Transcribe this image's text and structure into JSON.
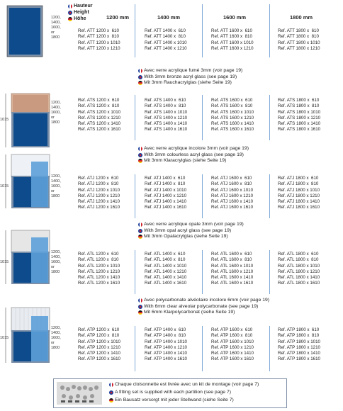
{
  "header": {
    "flags": [
      {
        "lang": "fr",
        "label": "Hauteur"
      },
      {
        "lang": "uk",
        "label": "Height"
      },
      {
        "lang": "de",
        "label": "Höhe"
      }
    ],
    "columns": [
      "1200 mm",
      "1400 mm",
      "1600 mm",
      "1800 mm"
    ]
  },
  "sections": [
    {
      "dims_height": "",
      "dims_list": "1200,\n1400,\n1600,\nor\n1800",
      "captions": [],
      "cols": [
        "Ref. ATT 1200 x  610\nRef. ATT 1200 x  810\nRef. ATT 1200 x 1010\nRef. ATT 1200 x 1210",
        "Ref. ATT 1400 x  610\nRef. ATT 1400 x  810\nRef. ATT 1400 x 1010\nRef. ATT 1400 x 1210",
        "Ref. ATT 1600 x  610\nRef. ATT 1600 x  810\nRef. ATT 1600 x 1010\nRef. ATT 1600 x 1210",
        "Ref. ATT 1800 x  610\nRef. ATT 1800 x  810\nRef. ATT 1800 x 1010\nRef. ATT 1800 x 1210"
      ]
    },
    {
      "dims_height": "1015",
      "dims_list": "1200,\n1400,\n1600,\nor\n1800",
      "captions": [
        {
          "lang": "fr",
          "text": "Avec verre acrylique fumé 3mm (voir page 19)"
        },
        {
          "lang": "uk",
          "text": "With 3mm bronze acryl glass (see page 19)"
        },
        {
          "lang": "de",
          "text": "Mit 3mm Rauchacrylglas (siehe Seite 19)"
        }
      ],
      "cols": [
        "Ref. ATS 1200 x  610\nRef. ATS 1200 x  810\nRef. ATS 1200 x 1010\nRef. ATS 1200 x 1210\nRef. ATS 1200 x 1410\nRef. ATS 1200 x 1610",
        "Ref. ATS 1400 x  610\nRef. ATS 1400 x  810\nRef. ATS 1400 x 1010\nRef. ATS 1400 x 1210\nRef. ATS 1400 x 1410\nRef. ATS 1400 x 1610",
        "Ref. ATS 1600 x  610\nRef. ATS 1600 x  810\nRef. ATS 1600 x 1010\nRef. ATS 1600 x 1210\nRef. ATS 1600 x 1410\nRef. ATS 1600 x 1610",
        "Ref. ATS 1800 x  610\nRef. ATS 1800 x  810\nRef. ATS 1800 x 1010\nRef. ATS 1800 x 1210\nRef. ATS 1800 x 1410\nRef. ATS 1800 x 1610"
      ]
    },
    {
      "dims_height": "1015",
      "dims_list": "1200,\n1400,\n1600,\nor\n1800",
      "captions": [
        {
          "lang": "fr",
          "text": "Avec verre acrylique incolore 3mm (voir page 19)"
        },
        {
          "lang": "uk",
          "text": "With 3mm colourless acryl glass (see page 19)"
        },
        {
          "lang": "de",
          "text": "Mit 3mm Klaracrylglas (siehe Seite 19)"
        }
      ],
      "cols": [
        "Ref. ATJ 1200 x  610\nRef. ATJ 1200 x  810\nRef. ATJ 1200 x 1010\nRef. ATJ 1200 x 1210\nRef. ATJ 1200 x 1410\nRef. ATJ 1200 x 1610",
        "Ref. ATJ 1400 x  610\nRef. ATJ 1400 x  810\nRef. ATJ 1400 x 1010\nRef. ATJ 1400 x 1210\nRef. ATJ 1400 x 1410\nRef. ATJ 1400 x 1610",
        "Ref. ATJ 1600 x  610\nRef. ATJ 1600 x  810\nRef. ATJ 1600 x 1010\nRef. ATJ 1600 x 1210\nRef. ATJ 1600 x 1410\nRef. ATJ 1600 x 1610",
        "Ref. ATJ 1800 x  610\nRef. ATJ 1800 x  810\nRef. ATJ 1800 x 1010\nRef. ATJ 1800 x 1210\nRef. ATJ 1800 x 1410\nRef. ATJ 1800 x 1610"
      ]
    },
    {
      "dims_height": "1015",
      "dims_list": "1200,\n1400,\n1600,\nor\n1800",
      "captions": [
        {
          "lang": "fr",
          "text": "Avec verre acrylique opale 3mm (voir page 19)"
        },
        {
          "lang": "uk",
          "text": "With 3mm opal acryl glass (see page 19)"
        },
        {
          "lang": "de",
          "text": "Mit 3mm Opalacrylglas (siehe Seite 19)"
        }
      ],
      "cols": [
        "Ref. ATL 1200 x  610\nRef. ATL 1200 x  810\nRef. ATL 1200 x 1010\nRef. ATL 1200 x 1210\nRef. ATL 1200 x 1410\nRef. ATL 1200 x 1610",
        "Ref. ATL 1400 x  610\nRef. ATL 1400 x  810\nRef. ATL 1400 x 1010\nRef. ATL 1400 x 1210\nRef. ATL 1400 x 1410\nRef. ATL 1400 x 1610",
        "Ref. ATL 1600 x  610\nRef. ATL 1600 x  810\nRef. ATL 1600 x 1010\nRef. ATL 1600 x 1210\nRef. ATL 1600 x 1410\nRef. ATL 1600 x 1610",
        "Ref. ATL 1800 x  610\nRef. ATL 1800 x  810\nRef. ATL 1800 x 1010\nRef. ATL 1800 x 1210\nRef. ATL 1800 x 1410\nRef. ATL 1800 x 1610"
      ]
    },
    {
      "dims_height": "1015",
      "dims_list": "1200,\n1400,\n1600,\nor\n1800",
      "captions": [
        {
          "lang": "fr",
          "text": "Avec polycarbonate alvéolaire incolore 6mm (voir page 19)"
        },
        {
          "lang": "uk",
          "text": "With 6mm clear alveolar polycarbonate (see page 19)"
        },
        {
          "lang": "de",
          "text": "Mit 6mm Klarpolycarbonat (siehe Seite 19)"
        }
      ],
      "cols": [
        "Ref. ATP 1200 x  610\nRef. ATP 1200 x  810\nRef. ATP 1200 x 1010\nRef. ATP 1200 x 1210\nRef. ATP 1200 x 1410\nRef. ATP 1200 x 1610",
        "Ref. ATP 1400 x  610\nRef. ATP 1400 x  810\nRef. ATP 1400 x 1010\nRef. ATP 1400 x 1210\nRef. ATP 1400 x 1410\nRef. ATP 1400 x 1610",
        "Ref. ATP 1600 x  610\nRef. ATP 1600 x  810\nRef. ATP 1600 x 1010\nRef. ATP 1600 x 1210\nRef. ATP 1600 x 1410\nRef. ATP 1600 x 1610",
        "Ref. ATP 1800 x  610\nRef. ATP 1800 x  810\nRef. ATP 1800 x 1010\nRef. ATP 1800 x 1210\nRef. ATP 1800 x 1410\nRef. ATP 1800 x 1610"
      ]
    }
  ],
  "footer": {
    "lines": [
      {
        "lang": "fr",
        "text": "Chaque cloisonnette est livrée avec un kit de montage (voir page 7)"
      },
      {
        "lang": "uk",
        "text": "A fitting set is supplied with each partition (see page 7)"
      },
      {
        "lang": "de",
        "text": "Ein Bausatz versorgt mit jeder Stellwand (siehe Seite 7)"
      }
    ]
  }
}
